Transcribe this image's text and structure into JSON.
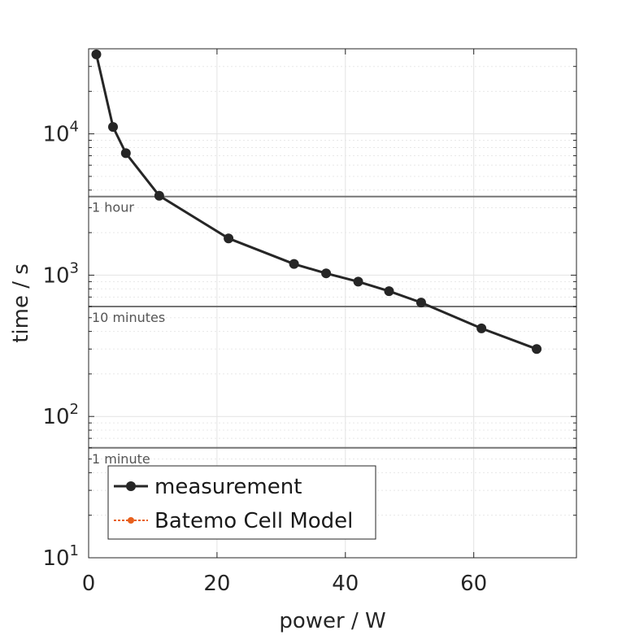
{
  "chart_data": {
    "type": "line",
    "title": "",
    "xlabel": "power / W",
    "ylabel": "time / s",
    "xlim": [
      0,
      76
    ],
    "ylim": [
      10,
      40000
    ],
    "yscale": "log",
    "grid": true,
    "xticks": [
      0,
      20,
      40,
      60
    ],
    "xtick_labels": [
      "0",
      "20",
      "40",
      "60"
    ],
    "yticks": [
      10,
      100,
      1000,
      10000
    ],
    "ytick_labels": [
      {
        "base": "10",
        "exp": "1"
      },
      {
        "base": "10",
        "exp": "2"
      },
      {
        "base": "10",
        "exp": "3"
      },
      {
        "base": "10",
        "exp": "4"
      }
    ],
    "reference_lines": [
      {
        "y": 3600,
        "label": "1 hour"
      },
      {
        "y": 600,
        "label": "10 minutes"
      },
      {
        "y": 60,
        "label": "1 minute"
      }
    ],
    "series": [
      {
        "name": "measurement",
        "color": "#262626",
        "x": [
          1.2,
          3.8,
          5.8,
          11.0,
          21.8,
          32.0,
          37.0,
          42.0,
          46.8,
          51.8,
          61.2,
          69.8
        ],
        "y": [
          36500,
          11200,
          7300,
          3650,
          1820,
          1200,
          1030,
          900,
          770,
          640,
          420,
          300
        ]
      },
      {
        "name": "Batemo Cell Model",
        "color": "#e8601c",
        "x": [],
        "y": []
      }
    ],
    "legend": {
      "position": "bottom-left",
      "entries": [
        "measurement",
        "Batemo Cell Model"
      ]
    }
  }
}
